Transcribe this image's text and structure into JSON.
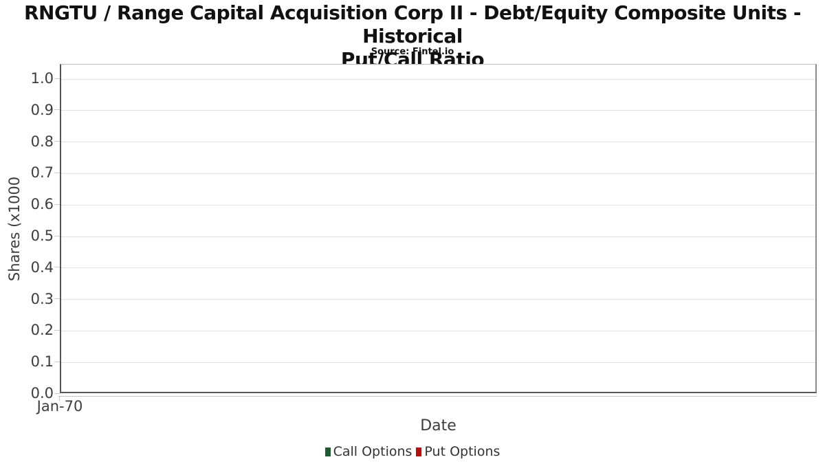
{
  "title": {
    "line1": "RNGTU / Range Capital Acquisition Corp II - Debt/Equity Composite Units - Historical",
    "line2": "Put/Call Ratio"
  },
  "subtitle": "Source: Fintel.io",
  "colors": {
    "call_options": "#1e5b32",
    "put_options": "#b01212",
    "grid": "#e2e2e2",
    "axis_dark": "#555555",
    "frame": "#8a8a8a",
    "text": "#3d3d3d"
  },
  "chart_data": {
    "type": "line",
    "title": "RNGTU / Range Capital Acquisition Corp II - Debt/Equity Composite Units - Historical Put/Call Ratio",
    "subtitle": "Source: Fintel.io",
    "xlabel": "Date",
    "ylabel": "Shares (x1000",
    "ylim": [
      0.0,
      1.0
    ],
    "grid": "horizontal",
    "legend_position": "bottom",
    "y_ticks": [
      {
        "value": 0.0,
        "label": "0.0"
      },
      {
        "value": 0.1,
        "label": "0.1"
      },
      {
        "value": 0.2,
        "label": "0.2"
      },
      {
        "value": 0.3,
        "label": "0.3"
      },
      {
        "value": 0.4,
        "label": "0.4"
      },
      {
        "value": 0.5,
        "label": "0.5"
      },
      {
        "value": 0.6,
        "label": "0.6"
      },
      {
        "value": 0.7,
        "label": "0.7"
      },
      {
        "value": 0.8,
        "label": "0.8"
      },
      {
        "value": 0.9,
        "label": "0.9"
      },
      {
        "value": 1.0,
        "label": "1.0"
      }
    ],
    "x_ticks": [
      {
        "position": 0.0,
        "label": "Jan-70"
      }
    ],
    "series": [
      {
        "name": "Call Options",
        "color": "#1e5b32",
        "x": [],
        "values": []
      },
      {
        "name": "Put Options",
        "color": "#b01212",
        "x": [],
        "values": []
      }
    ]
  }
}
